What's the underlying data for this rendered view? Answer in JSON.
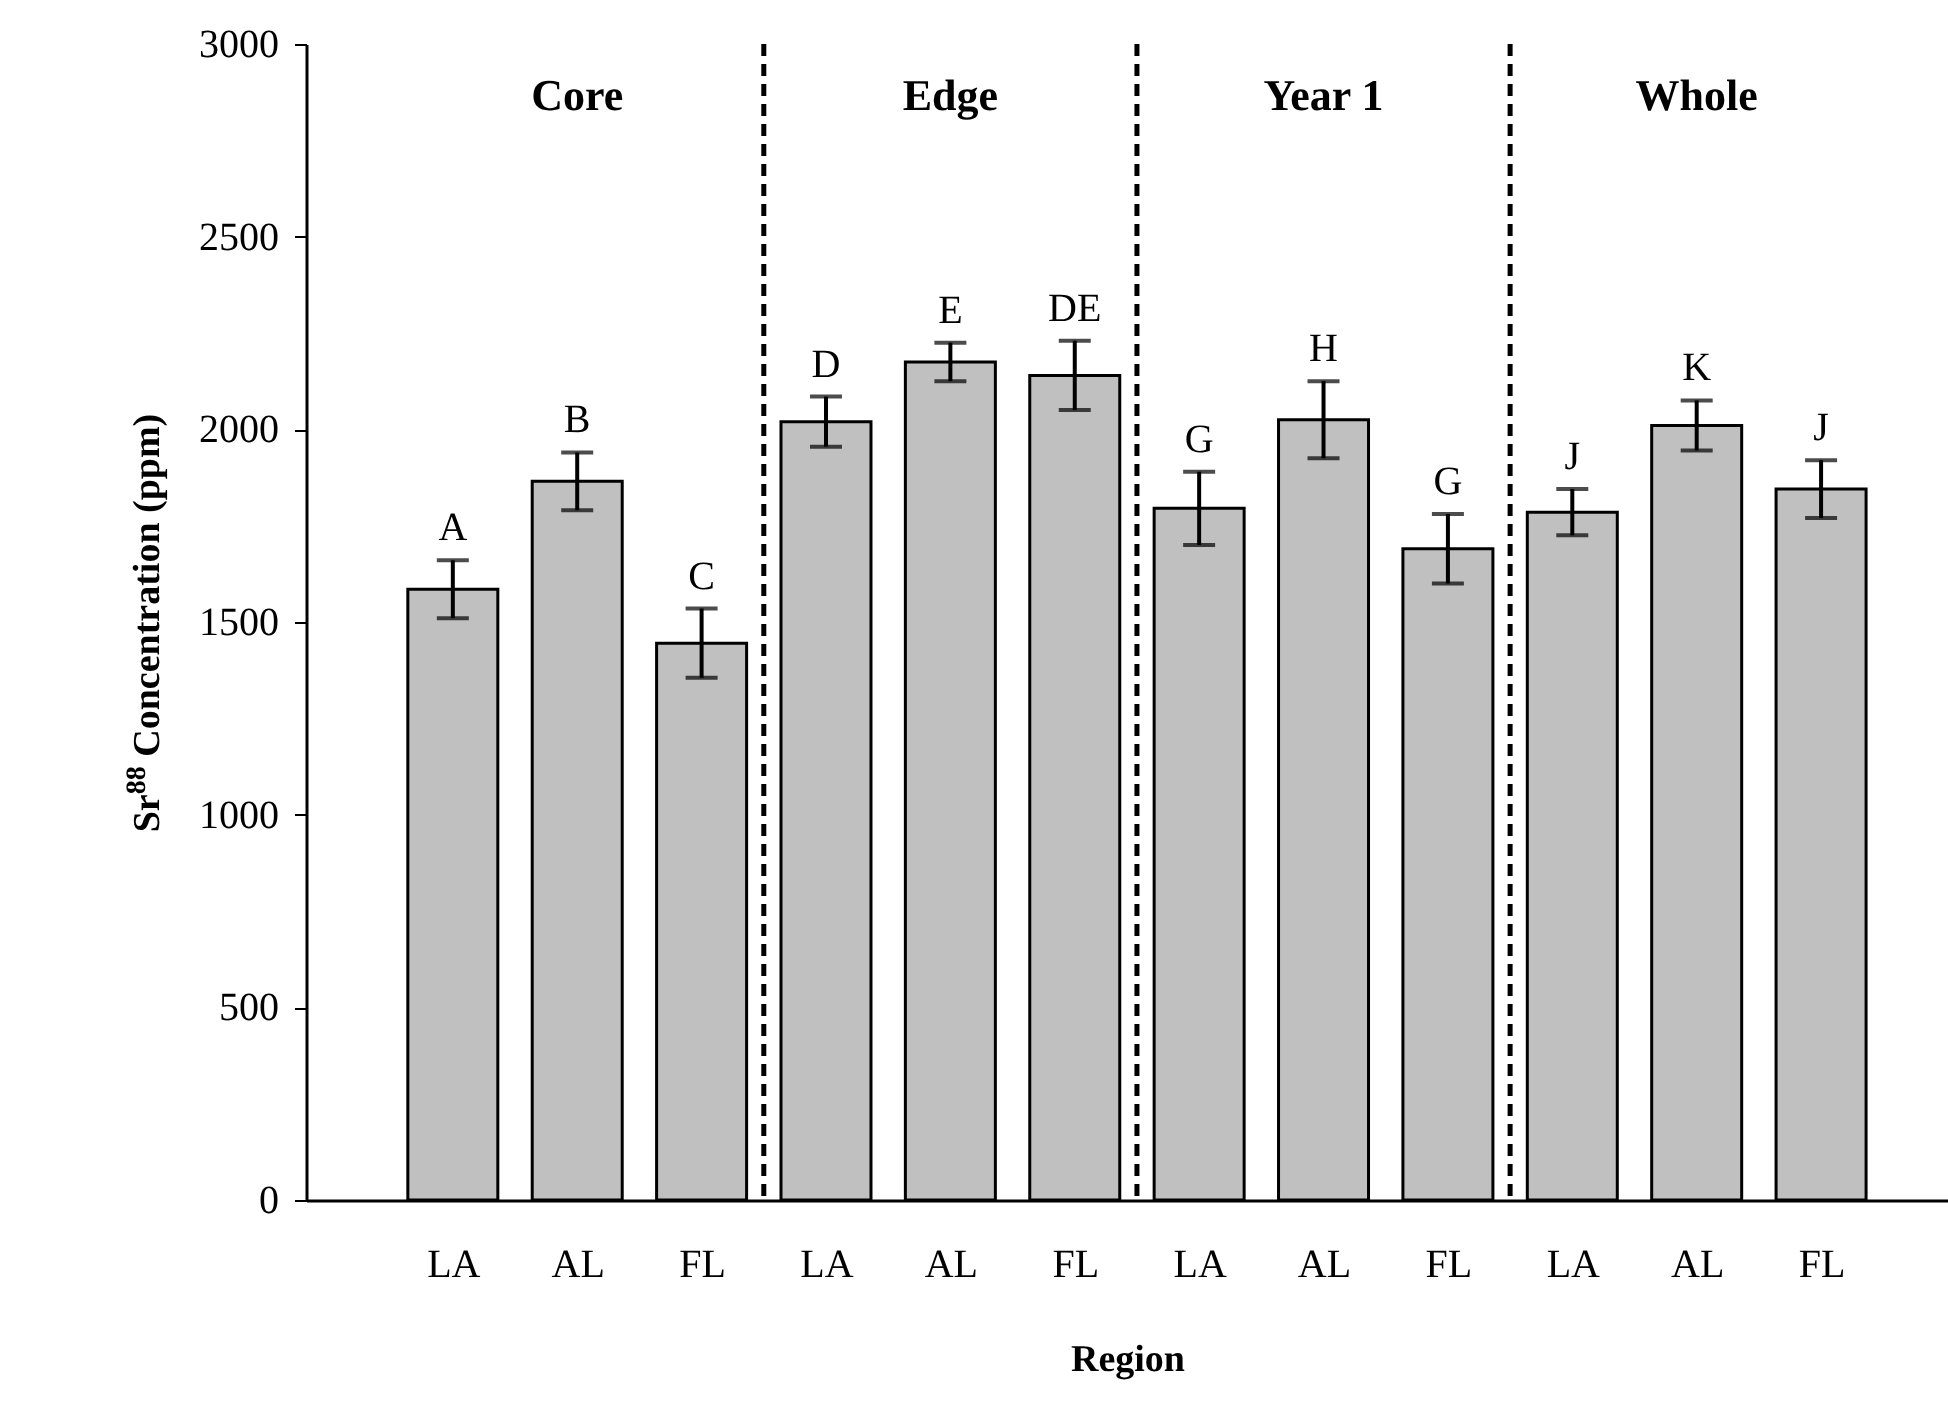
{
  "chart_data": {
    "type": "bar",
    "xlabel": "Region",
    "ylabel": "Sr$^{88}$ Concentration (ppm)",
    "categories": [
      "LA",
      "AL",
      "FL",
      "LA",
      "AL",
      "FL",
      "LA",
      "AL",
      "FL",
      "LA",
      "AL",
      "FL"
    ],
    "values": [
      1585,
      1865,
      1445,
      2020,
      2175,
      2140,
      1795,
      2025,
      1690,
      1785,
      2010,
      1845
    ],
    "errors": [
      75,
      75,
      90,
      65,
      50,
      90,
      95,
      100,
      90,
      60,
      65,
      75
    ],
    "value_labels": [
      "A",
      "B",
      "C",
      "D",
      "E",
      "DE",
      "G",
      "H",
      "G",
      "J",
      "K",
      "J"
    ],
    "color": "#c0c0c0",
    "ylim": [
      0,
      3000
    ],
    "yticks": [
      0,
      500,
      1000,
      1500,
      2000,
      2500,
      3000
    ],
    "annotations": [
      "Core",
      "Edge",
      "Year 1",
      "Whole"
    ],
    "grid": false
  }
}
